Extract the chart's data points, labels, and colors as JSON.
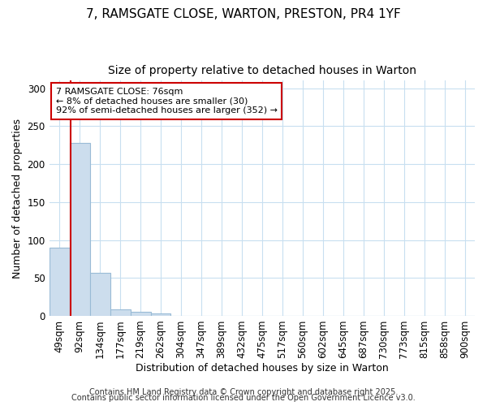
{
  "title": "7, RAMSGATE CLOSE, WARTON, PRESTON, PR4 1YF",
  "subtitle": "Size of property relative to detached houses in Warton",
  "xlabel": "Distribution of detached houses by size in Warton",
  "ylabel": "Number of detached properties",
  "categories": [
    "49sqm",
    "92sqm",
    "134sqm",
    "177sqm",
    "219sqm",
    "262sqm",
    "304sqm",
    "347sqm",
    "389sqm",
    "432sqm",
    "475sqm",
    "517sqm",
    "560sqm",
    "602sqm",
    "645sqm",
    "687sqm",
    "730sqm",
    "773sqm",
    "815sqm",
    "858sqm",
    "900sqm"
  ],
  "values": [
    90,
    228,
    57,
    8,
    5,
    3,
    0,
    0,
    0,
    0,
    0,
    0,
    0,
    0,
    0,
    0,
    0,
    0,
    0,
    0,
    0
  ],
  "bar_color": "#ccdded",
  "bar_edge_color": "#99bbd6",
  "bar_width": 1.0,
  "ylim": [
    0,
    310
  ],
  "yticks": [
    0,
    50,
    100,
    150,
    200,
    250,
    300
  ],
  "red_line_x": 0.55,
  "annotation_text": "7 RAMSGATE CLOSE: 76sqm\n← 8% of detached houses are smaller (30)\n92% of semi-detached houses are larger (352) →",
  "annotation_color": "#cc0000",
  "footer1": "Contains HM Land Registry data © Crown copyright and database right 2025.",
  "footer2": "Contains public sector information licensed under the Open Government Licence v3.0.",
  "bg_color": "#ffffff",
  "grid_color": "#c8dff0",
  "title_fontsize": 11,
  "subtitle_fontsize": 10,
  "label_fontsize": 9,
  "tick_fontsize": 8.5,
  "footer_fontsize": 7
}
